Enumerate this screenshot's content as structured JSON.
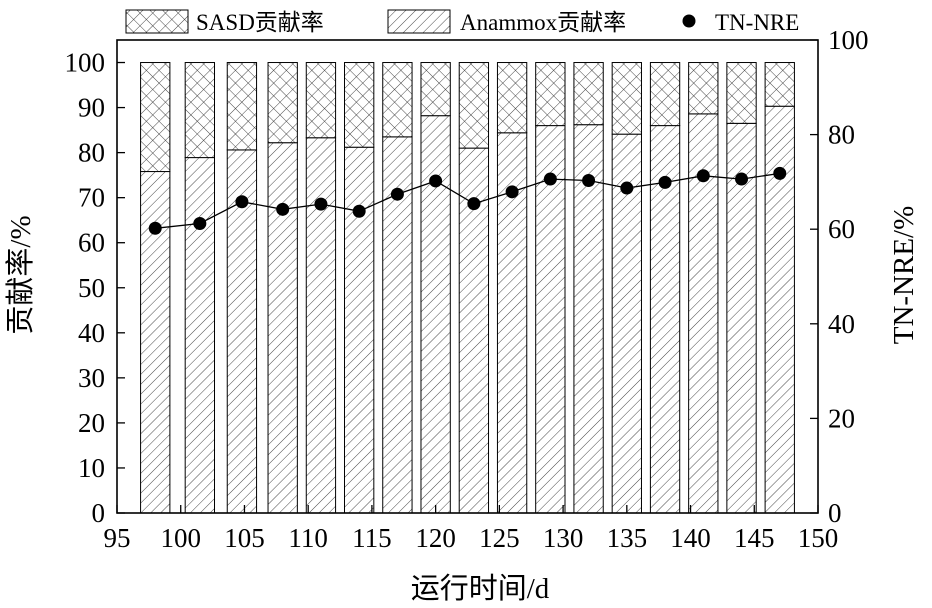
{
  "chart_data": {
    "type": "bar",
    "x": [
      98,
      101.5,
      104.8,
      108,
      111,
      114,
      117,
      120,
      123,
      126,
      129,
      132,
      135,
      138,
      141,
      144,
      147
    ],
    "series": [
      {
        "name": "Anammox贡献率",
        "axis": "left",
        "kind": "stacked-bar",
        "values": [
          75.8,
          78.9,
          80.6,
          82.2,
          83.3,
          81.2,
          83.5,
          88.2,
          81.0,
          84.4,
          86.0,
          86.2,
          84.1,
          86.0,
          88.6,
          86.5,
          90.3
        ]
      },
      {
        "name": "SASD贡献率",
        "axis": "left",
        "kind": "stacked-bar",
        "values": [
          24.2,
          21.1,
          19.4,
          17.8,
          16.7,
          18.8,
          16.5,
          11.8,
          19.0,
          15.6,
          14.0,
          13.8,
          15.9,
          14.0,
          11.4,
          13.5,
          9.7
        ]
      },
      {
        "name": "TN-NRE",
        "axis": "right",
        "kind": "line-marker",
        "values": [
          60.2,
          61.2,
          65.8,
          64.2,
          65.3,
          63.8,
          67.4,
          70.2,
          65.4,
          67.9,
          70.6,
          70.3,
          68.7,
          69.9,
          71.3,
          70.6,
          71.8
        ]
      }
    ],
    "xlabel": "运行时间/d",
    "ylabel": "贡献率/%",
    "y2label": "TN-NRE/%",
    "xlim": [
      95,
      150
    ],
    "ylim": [
      0,
      105
    ],
    "y2lim": [
      0,
      100
    ],
    "xticks": [
      "95",
      "100",
      "105",
      "110",
      "115",
      "120",
      "125",
      "130",
      "135",
      "140",
      "145",
      "150"
    ],
    "yticks": [
      "0",
      "10",
      "20",
      "30",
      "40",
      "50",
      "60",
      "70",
      "80",
      "90",
      "100"
    ],
    "y2ticks": [
      "0",
      "20",
      "40",
      "60",
      "80",
      "100"
    ],
    "bar_width_units": 2.3,
    "grid": false,
    "legend": "top, outside plot area"
  }
}
